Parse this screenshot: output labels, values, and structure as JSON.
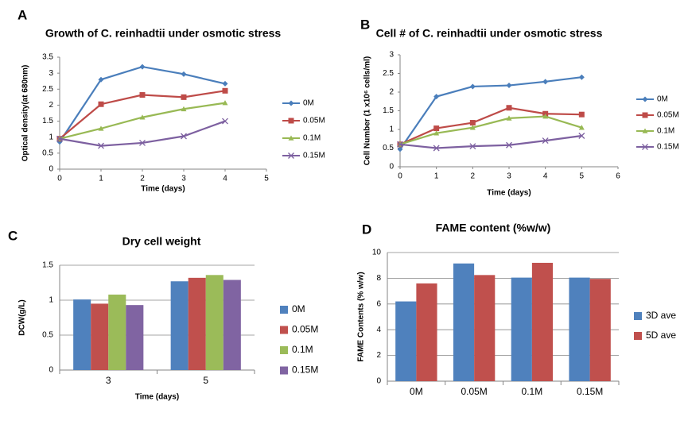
{
  "chart_data": [
    {
      "type": "line",
      "panel": "A",
      "title": "Growth of C. reinhadtii under osmotic stress",
      "x_label": "Time (days)",
      "y_label": "Optical density(at 680nm)",
      "x": [
        0,
        1,
        2,
        3,
        4
      ],
      "xlim": [
        0,
        5
      ],
      "xticks": [
        0,
        1,
        2,
        3,
        4,
        5
      ],
      "ylim": [
        0,
        3.5
      ],
      "yticks": [
        0,
        0.5,
        1,
        1.5,
        2,
        2.5,
        3,
        3.5
      ],
      "grid": false,
      "series": [
        {
          "name": "0M",
          "color": "#4a7ebb",
          "marker": "diamond",
          "values": [
            0.85,
            2.8,
            3.2,
            2.97,
            2.67
          ]
        },
        {
          "name": "0.05M",
          "color": "#be4b48",
          "marker": "square",
          "values": [
            0.95,
            2.03,
            2.32,
            2.25,
            2.45
          ]
        },
        {
          "name": "0.1M",
          "color": "#98b954",
          "marker": "triangle",
          "values": [
            0.95,
            1.27,
            1.62,
            1.88,
            2.07
          ]
        },
        {
          "name": "0.15M",
          "color": "#7d60a0",
          "marker": "cross",
          "values": [
            0.95,
            0.73,
            0.82,
            1.03,
            1.5
          ]
        }
      ]
    },
    {
      "type": "line",
      "panel": "B",
      "title": "Cell # of C. reinhadtii under osmotic stress",
      "x_label": "Time (days)",
      "y_label": "Cell Number (1 x10⁶ cells/ml)",
      "x": [
        0,
        1,
        2,
        3,
        4,
        5
      ],
      "xlim": [
        0,
        6
      ],
      "xticks": [
        0,
        1,
        2,
        3,
        4,
        5,
        6
      ],
      "ylim": [
        0,
        3
      ],
      "yticks": [
        0,
        0.5,
        1,
        1.5,
        2,
        2.5,
        3
      ],
      "grid": false,
      "series": [
        {
          "name": "0M",
          "color": "#4a7ebb",
          "marker": "diamond",
          "values": [
            0.47,
            1.88,
            2.15,
            2.18,
            2.28,
            2.4
          ]
        },
        {
          "name": "0.05M",
          "color": "#be4b48",
          "marker": "square",
          "values": [
            0.6,
            1.03,
            1.18,
            1.58,
            1.42,
            1.4
          ]
        },
        {
          "name": "0.1M",
          "color": "#98b954",
          "marker": "triangle",
          "values": [
            0.6,
            0.9,
            1.05,
            1.3,
            1.35,
            1.05
          ]
        },
        {
          "name": "0.15M",
          "color": "#7d60a0",
          "marker": "cross",
          "values": [
            0.6,
            0.5,
            0.55,
            0.58,
            0.7,
            0.83
          ]
        }
      ]
    },
    {
      "type": "bar",
      "panel": "C",
      "title": "Dry cell weight",
      "x_label": "Time (days)",
      "y_label": "DCW(g/L)",
      "categories": [
        "3",
        "5"
      ],
      "ylim": [
        0,
        1.5
      ],
      "yticks": [
        0,
        0.5,
        1,
        1.5
      ],
      "grid": true,
      "series": [
        {
          "name": "0M",
          "color": "#4f81bd",
          "values": [
            1.01,
            1.27
          ]
        },
        {
          "name": "0.05M",
          "color": "#c0504d",
          "values": [
            0.95,
            1.32
          ]
        },
        {
          "name": "0.1M",
          "color": "#9bbb59",
          "values": [
            1.08,
            1.36
          ]
        },
        {
          "name": "0.15M",
          "color": "#8064a2",
          "values": [
            0.93,
            1.29
          ]
        }
      ]
    },
    {
      "type": "bar",
      "panel": "D",
      "title": "FAME content (%w/w)",
      "y_label": "FAME Contents (% w/w)",
      "categories": [
        "0M",
        "0.05M",
        "0.1M",
        "0.15M"
      ],
      "ylim": [
        0,
        10
      ],
      "yticks": [
        0,
        2,
        4,
        6,
        8,
        10
      ],
      "grid": true,
      "series": [
        {
          "name": "3D ave",
          "color": "#4f81bd",
          "values": [
            6.2,
            9.15,
            8.05,
            8.05
          ]
        },
        {
          "name": "5D ave",
          "color": "#c0504d",
          "values": [
            7.6,
            8.25,
            9.2,
            7.95
          ]
        }
      ]
    }
  ]
}
